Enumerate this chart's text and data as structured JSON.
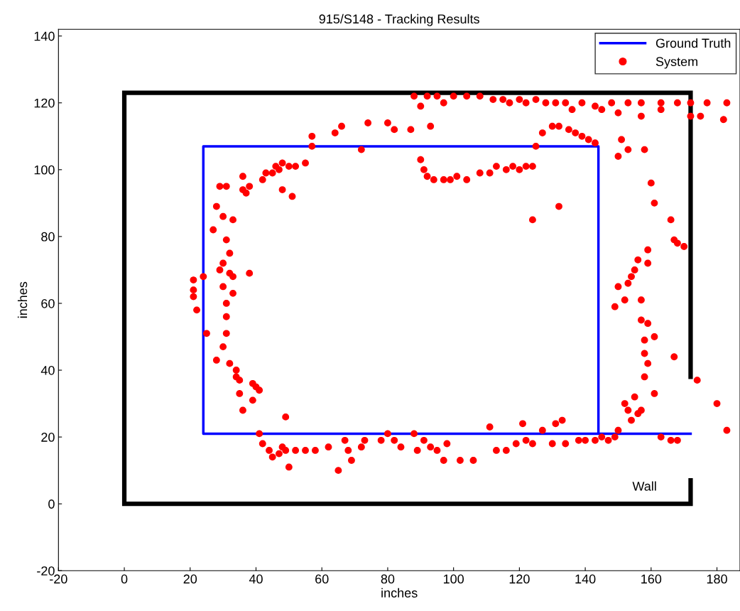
{
  "chart_data": {
    "type": "scatter",
    "title": "915/S148 - Tracking Results",
    "xlabel": "inches",
    "ylabel": "inches",
    "xlim": [
      -20,
      187
    ],
    "ylim": [
      -20,
      142
    ],
    "xticks": [
      -20,
      0,
      20,
      40,
      60,
      80,
      100,
      120,
      140,
      160,
      180
    ],
    "yticks": [
      -20,
      0,
      20,
      40,
      60,
      80,
      100,
      120,
      140
    ],
    "grid": false,
    "legend": "top right",
    "annotations": [
      "Wall"
    ],
    "series": [
      {
        "type": "line",
        "color": "#000000",
        "x": [
          172,
          172,
          0,
          0,
          172,
          172
        ],
        "values": [
          38,
          123,
          123,
          0,
          0,
          7
        ]
      },
      {
        "type": "line",
        "name": "Ground Truth",
        "color": "#0000ff",
        "x": [
          172,
          24,
          24,
          144,
          144
        ],
        "values": [
          21,
          21,
          107,
          107,
          21
        ]
      },
      {
        "name": "System",
        "color": "#ff0000",
        "marker": "circle",
        "x": [
          21,
          21,
          21,
          22,
          24,
          25,
          27,
          28,
          28,
          29,
          30,
          29,
          30,
          30,
          31,
          31,
          31,
          31,
          31,
          30,
          32,
          32,
          32,
          33,
          33,
          33,
          34,
          34,
          35,
          35,
          36,
          36,
          36,
          37,
          38,
          38,
          39,
          39,
          40,
          41,
          42,
          43,
          45,
          46,
          47,
          48,
          50,
          48,
          51,
          52,
          55,
          57,
          57,
          64,
          66,
          72,
          74,
          80,
          82,
          87,
          93,
          41,
          42,
          44,
          45,
          47,
          48,
          49,
          50,
          49,
          52,
          55,
          58,
          62,
          65,
          67,
          68,
          69,
          72,
          73,
          78,
          80,
          82,
          84,
          88,
          89,
          91,
          93,
          95,
          97,
          98,
          102,
          106,
          111,
          113,
          116,
          119,
          121,
          122,
          124,
          127,
          130,
          131,
          133,
          134,
          138,
          140,
          143,
          145,
          147,
          149,
          150,
          152,
          153,
          154,
          155,
          156,
          157,
          158,
          159,
          161,
          163,
          166,
          168,
          149,
          150,
          152,
          153,
          154,
          155,
          156,
          157,
          158,
          158,
          161,
          159,
          157,
          159,
          159,
          160,
          161,
          166,
          167,
          168,
          170,
          167,
          174,
          180,
          183,
          150,
          151,
          153,
          158,
          90,
          91,
          92,
          94,
          97,
          99,
          101,
          104,
          108,
          111,
          113,
          116,
          118,
          120,
          122,
          124,
          132,
          127,
          130,
          132,
          135,
          137,
          139,
          141,
          143,
          125,
          124,
          88,
          90,
          92,
          95,
          97,
          100,
          104,
          108,
          112,
          115,
          117,
          120,
          122,
          125,
          128,
          131,
          134,
          136,
          139,
          143,
          145,
          148,
          150,
          153,
          157,
          157,
          163,
          163,
          168,
          172,
          172,
          177,
          175,
          183,
          182
        ],
        "values": [
          67,
          64,
          62,
          58,
          68,
          51,
          82,
          89,
          43,
          95,
          86,
          70,
          72,
          65,
          95,
          79,
          60,
          56,
          51,
          47,
          42,
          75,
          69,
          68,
          63,
          85,
          40,
          38,
          37,
          33,
          28,
          98,
          94,
          93,
          69,
          95,
          36,
          31,
          35,
          34,
          97,
          99,
          99,
          101,
          100,
          102,
          101,
          94,
          92,
          101,
          102,
          107,
          110,
          111,
          113,
          106,
          114,
          114,
          112,
          112,
          113,
          21,
          18,
          16,
          14,
          15,
          17,
          16,
          11,
          26,
          16,
          16,
          16,
          17,
          10,
          19,
          16,
          13,
          17,
          19,
          19,
          21,
          19,
          17,
          21,
          16,
          19,
          17,
          16,
          13,
          18,
          13,
          13,
          23,
          16,
          16,
          18,
          24,
          19,
          18,
          22,
          18,
          24,
          25,
          18,
          19,
          19,
          19,
          20,
          19,
          20,
          22,
          30,
          28,
          25,
          32,
          27,
          28,
          38,
          42,
          33,
          20,
          19,
          19,
          59,
          65,
          61,
          66,
          68,
          70,
          73,
          55,
          49,
          45,
          50,
          54,
          61,
          76,
          72,
          96,
          90,
          85,
          79,
          78,
          77,
          44,
          37,
          30,
          22,
          104,
          109,
          106,
          106,
          103,
          100,
          98,
          97,
          97,
          97,
          98,
          97,
          99,
          99,
          101,
          100,
          101,
          100,
          101,
          85,
          89,
          111,
          113,
          113,
          112,
          111,
          110,
          109,
          108,
          107,
          101,
          122,
          119,
          122,
          122,
          120,
          122,
          122,
          122,
          121,
          121,
          120,
          121,
          120,
          121,
          120,
          120,
          120,
          118,
          120,
          119,
          118,
          120,
          117,
          120,
          120,
          116,
          120,
          118,
          120,
          116,
          120,
          120,
          116,
          120,
          115
        ]
      }
    ]
  }
}
